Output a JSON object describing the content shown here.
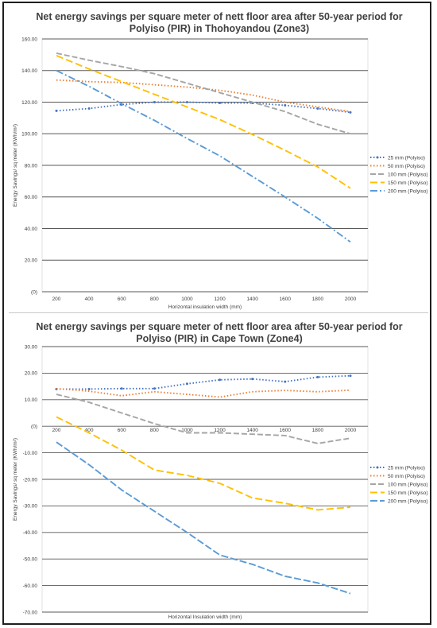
{
  "chart_data": [
    {
      "type": "line",
      "title_line1": "Net energy savings per square meter of nett floor area after 50-year period for",
      "title_line2": "Polyiso (PIR) in Thohoyandou (Zone3)",
      "xlabel": "Horizontal insulation width (mm)",
      "ylabel": "Energy Savings/ sq meter (KWh/m²)",
      "ylim": [
        0,
        160
      ],
      "ytick_labels": [
        "(0)",
        "20.00",
        "40.00",
        "60.00",
        "80.00",
        "100.00",
        "120.00",
        "140.00",
        "160.00"
      ],
      "categories": [
        "200",
        "400",
        "600",
        "800",
        "1000",
        "1200",
        "1400",
        "1600",
        "1800",
        "2000"
      ],
      "grid": true,
      "legend_position": "right",
      "series": [
        {
          "name": "25 mm (Polyiso)",
          "color": "#4472c4",
          "dash": "1.5,2.5",
          "marker": true,
          "values": [
            114.5,
            116,
            118.5,
            120,
            120,
            119.5,
            119.5,
            118,
            116,
            113.5
          ]
        },
        {
          "name": "50 mm (Polyiso)",
          "color": "#ed7d31",
          "dash": "1.5,2.5",
          "marker": false,
          "values": [
            134,
            133,
            132.5,
            131,
            129.5,
            127.5,
            124.5,
            120,
            117,
            114
          ]
        },
        {
          "name": "100 mm (Polyiso)",
          "color": "#a5a5a5",
          "dash": "7,3",
          "marker": false,
          "values": [
            151,
            146.5,
            142.5,
            138,
            132,
            126,
            120,
            114,
            106,
            100
          ]
        },
        {
          "name": "150 mm (Polyiso)",
          "color": "#ffc000",
          "dash": "9,4",
          "marker": false,
          "values": [
            149.5,
            141,
            133,
            125,
            117,
            109,
            99.5,
            89.5,
            79,
            65.5
          ]
        },
        {
          "name": "200 mm (Polyiso)",
          "color": "#5b9bd5",
          "dash": "9,3,2,3",
          "marker": false,
          "values": [
            140,
            130,
            119,
            108.5,
            97,
            86,
            73,
            60,
            46.5,
            31.5
          ]
        }
      ]
    },
    {
      "type": "line",
      "title_line1": "Net energy savings per square meter of nett floor area after 50-year period for",
      "title_line2": "Polyiso (PIR) in Cape Town (Zone4)",
      "xlabel": "Horizontal Insulation width (mm)",
      "ylabel": "Energy Savings/ sq meter (KWh/m²)",
      "ylim": [
        -70,
        30
      ],
      "ytick_labels": [
        "-70.00",
        "-60.00",
        "-50.00",
        "-40.00",
        "-30.00",
        "-20.00",
        "-10.00",
        "(0)",
        "10.00",
        "20.00",
        "30.00"
      ],
      "categories": [
        "200",
        "400",
        "600",
        "800",
        "1000",
        "1200",
        "1400",
        "1600",
        "1800",
        "2000"
      ],
      "grid": true,
      "legend_position": "right",
      "series": [
        {
          "name": "25 mm (Polyiso)",
          "color": "#4472c4",
          "dash": "1.5,2.5",
          "marker": true,
          "values": [
            14,
            14,
            14.2,
            14.2,
            16,
            17.5,
            17.8,
            16.8,
            18.5,
            19
          ]
        },
        {
          "name": "50 mm (Polyiso)",
          "color": "#ed7d31",
          "dash": "1.5,2.5",
          "marker": false,
          "values": [
            14.2,
            13.2,
            11.5,
            13,
            12,
            11,
            13,
            13.5,
            13,
            13.6
          ]
        },
        {
          "name": "100 mm (Polyiso)",
          "color": "#a5a5a5",
          "dash": "7,3",
          "marker": false,
          "values": [
            12,
            9,
            5,
            1,
            -2.5,
            -2.5,
            -3,
            -3.5,
            -6.5,
            -4.5
          ]
        },
        {
          "name": "150 mm (Polyiso)",
          "color": "#ffc000",
          "dash": "9,4",
          "marker": false,
          "values": [
            3.5,
            -2.5,
            -9,
            -16.5,
            -18.5,
            -21.5,
            -27,
            -29,
            -31.5,
            -30.5
          ]
        },
        {
          "name": "200 mm (Polyiso)",
          "color": "#5b9bd5",
          "dash": "9,3",
          "marker": false,
          "values": [
            -6,
            -14.5,
            -24,
            -32,
            -40,
            -48.5,
            -52,
            -56.5,
            -59,
            -63
          ]
        }
      ]
    }
  ]
}
